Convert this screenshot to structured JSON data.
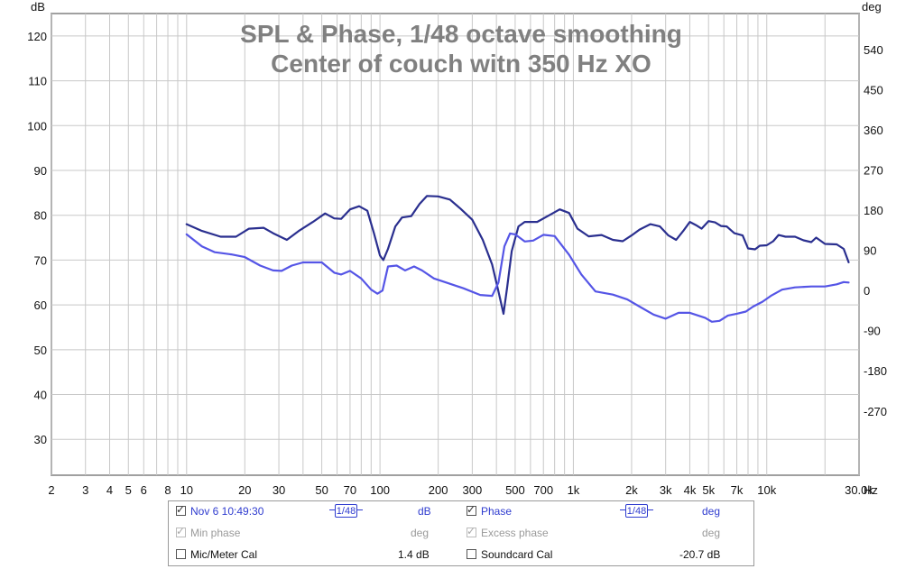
{
  "chart_data": {
    "type": "line",
    "title": "SPL & Phase, 1/48 octave smoothing",
    "subtitle": "Center of couch witn 350 Hz XO",
    "xlabel": "Hz",
    "ylabel_left": "dB",
    "ylabel_right": "deg",
    "x_scale": "log",
    "xlim": [
      2,
      30000
    ],
    "ylim_left": [
      22,
      125
    ],
    "ylim_right": [
      -414,
      621
    ],
    "grid": true,
    "x_ticks": [
      {
        "v": 2,
        "label": "2"
      },
      {
        "v": 3,
        "label": "3"
      },
      {
        "v": 4,
        "label": "4"
      },
      {
        "v": 5,
        "label": "5"
      },
      {
        "v": 6,
        "label": "6"
      },
      {
        "v": 8,
        "label": "8"
      },
      {
        "v": 10,
        "label": "10"
      },
      {
        "v": 20,
        "label": "20"
      },
      {
        "v": 30,
        "label": "30"
      },
      {
        "v": 50,
        "label": "50"
      },
      {
        "v": 70,
        "label": "70"
      },
      {
        "v": 100,
        "label": "100"
      },
      {
        "v": 200,
        "label": "200"
      },
      {
        "v": 300,
        "label": "300"
      },
      {
        "v": 500,
        "label": "500"
      },
      {
        "v": 700,
        "label": "700"
      },
      {
        "v": 1000,
        "label": "1k"
      },
      {
        "v": 2000,
        "label": "2k"
      },
      {
        "v": 3000,
        "label": "3k"
      },
      {
        "v": 4000,
        "label": "4k"
      },
      {
        "v": 5000,
        "label": "5k"
      },
      {
        "v": 7000,
        "label": "7k"
      },
      {
        "v": 10000,
        "label": "10k"
      },
      {
        "v": 30000,
        "label": "30.0k"
      }
    ],
    "y_ticks_left": [
      120,
      110,
      100,
      90,
      80,
      70,
      60,
      50,
      40,
      30
    ],
    "y_ticks_right": [
      540,
      450,
      360,
      270,
      180,
      90,
      0,
      -90,
      -180,
      -270
    ],
    "series": [
      {
        "name": "Nov 6 10:49:30",
        "axis": "left",
        "color": "#2a2f8f",
        "points": [
          [
            10,
            78
          ],
          [
            12,
            76.5
          ],
          [
            15,
            75.2
          ],
          [
            18,
            75.2
          ],
          [
            21,
            77
          ],
          [
            25,
            77.2
          ],
          [
            28,
            76
          ],
          [
            33,
            74.5
          ],
          [
            38,
            76.5
          ],
          [
            45,
            78.5
          ],
          [
            52,
            80.4
          ],
          [
            58,
            79.3
          ],
          [
            63,
            79.2
          ],
          [
            70,
            81.3
          ],
          [
            78,
            82
          ],
          [
            86,
            81
          ],
          [
            93,
            76
          ],
          [
            100,
            71
          ],
          [
            104,
            70
          ],
          [
            110,
            72.5
          ],
          [
            120,
            77.5
          ],
          [
            130,
            79.5
          ],
          [
            145,
            79.8
          ],
          [
            160,
            82.5
          ],
          [
            175,
            84.3
          ],
          [
            200,
            84.2
          ],
          [
            230,
            83.5
          ],
          [
            260,
            81.5
          ],
          [
            300,
            79
          ],
          [
            340,
            74.5
          ],
          [
            380,
            69
          ],
          [
            410,
            63
          ],
          [
            435,
            58
          ],
          [
            455,
            64
          ],
          [
            480,
            72
          ],
          [
            520,
            77.5
          ],
          [
            560,
            78.5
          ],
          [
            650,
            78.5
          ],
          [
            750,
            80
          ],
          [
            850,
            81.3
          ],
          [
            950,
            80.5
          ],
          [
            1050,
            77
          ],
          [
            1200,
            75.3
          ],
          [
            1400,
            75.6
          ],
          [
            1600,
            74.5
          ],
          [
            1800,
            74.2
          ],
          [
            2000,
            75.5
          ],
          [
            2200,
            76.8
          ],
          [
            2500,
            78
          ],
          [
            2800,
            77.5
          ],
          [
            3100,
            75.5
          ],
          [
            3400,
            74.5
          ],
          [
            3700,
            76.5
          ],
          [
            4000,
            78.5
          ],
          [
            4300,
            77.8
          ],
          [
            4600,
            77
          ],
          [
            5000,
            78.7
          ],
          [
            5400,
            78.4
          ],
          [
            5800,
            77.6
          ],
          [
            6200,
            77.5
          ],
          [
            6800,
            76
          ],
          [
            7500,
            75.5
          ],
          [
            8000,
            72.6
          ],
          [
            8700,
            72.4
          ],
          [
            9200,
            73.2
          ],
          [
            10000,
            73.3
          ],
          [
            10800,
            74.2
          ],
          [
            11500,
            75.6
          ],
          [
            12500,
            75.2
          ],
          [
            14000,
            75.2
          ],
          [
            15500,
            74.4
          ],
          [
            17000,
            74
          ],
          [
            18000,
            75
          ],
          [
            20000,
            73.6
          ],
          [
            23000,
            73.5
          ],
          [
            25000,
            72.5
          ],
          [
            26500,
            69.5
          ]
        ]
      },
      {
        "name": "Phase",
        "axis": "right",
        "color": "#5555e6",
        "points": [
          [
            10,
            126
          ],
          [
            12,
            99
          ],
          [
            14,
            86
          ],
          [
            17,
            81
          ],
          [
            20,
            75
          ],
          [
            24,
            56
          ],
          [
            28,
            45
          ],
          [
            31,
            44
          ],
          [
            35,
            56
          ],
          [
            40,
            63
          ],
          [
            50,
            63
          ],
          [
            58,
            40
          ],
          [
            63,
            36
          ],
          [
            70,
            44
          ],
          [
            80,
            27
          ],
          [
            90,
            2
          ],
          [
            97,
            -7
          ],
          [
            103,
            0
          ],
          [
            110,
            54
          ],
          [
            122,
            56
          ],
          [
            135,
            45
          ],
          [
            150,
            54
          ],
          [
            165,
            45
          ],
          [
            190,
            27
          ],
          [
            220,
            18
          ],
          [
            270,
            5
          ],
          [
            330,
            -10
          ],
          [
            380,
            -12
          ],
          [
            410,
            18
          ],
          [
            440,
            99
          ],
          [
            470,
            128
          ],
          [
            500,
            126
          ],
          [
            560,
            110
          ],
          [
            620,
            112
          ],
          [
            700,
            125
          ],
          [
            800,
            122
          ],
          [
            950,
            80
          ],
          [
            1100,
            36
          ],
          [
            1300,
            -2
          ],
          [
            1600,
            -9
          ],
          [
            1900,
            -20
          ],
          [
            2200,
            -36
          ],
          [
            2600,
            -54
          ],
          [
            3000,
            -63
          ],
          [
            3500,
            -50
          ],
          [
            4000,
            -50
          ],
          [
            4800,
            -61
          ],
          [
            5200,
            -70
          ],
          [
            5700,
            -68
          ],
          [
            6300,
            -56
          ],
          [
            7000,
            -52
          ],
          [
            7800,
            -47
          ],
          [
            8500,
            -36
          ],
          [
            9500,
            -25
          ],
          [
            10500,
            -12
          ],
          [
            12000,
            2
          ],
          [
            14000,
            7
          ],
          [
            17000,
            9
          ],
          [
            20000,
            9
          ],
          [
            23000,
            14
          ],
          [
            25000,
            19
          ],
          [
            26500,
            18
          ]
        ]
      }
    ]
  },
  "legend": {
    "row1": {
      "trace_label": "Nov 6 10:49:30",
      "trace_smooth": "1/48",
      "trace_unit": "dB",
      "phase_label": "Phase",
      "phase_smooth": "1/48",
      "phase_unit": "deg"
    },
    "row2": {
      "min_label": "Min phase",
      "min_unit": "deg",
      "excess_label": "Excess phase",
      "excess_unit": "deg"
    },
    "row3": {
      "mic_label": "Mic/Meter Cal",
      "mic_value": "1.4 dB",
      "sound_label": "Soundcard Cal",
      "sound_value": "-20.7 dB"
    }
  }
}
